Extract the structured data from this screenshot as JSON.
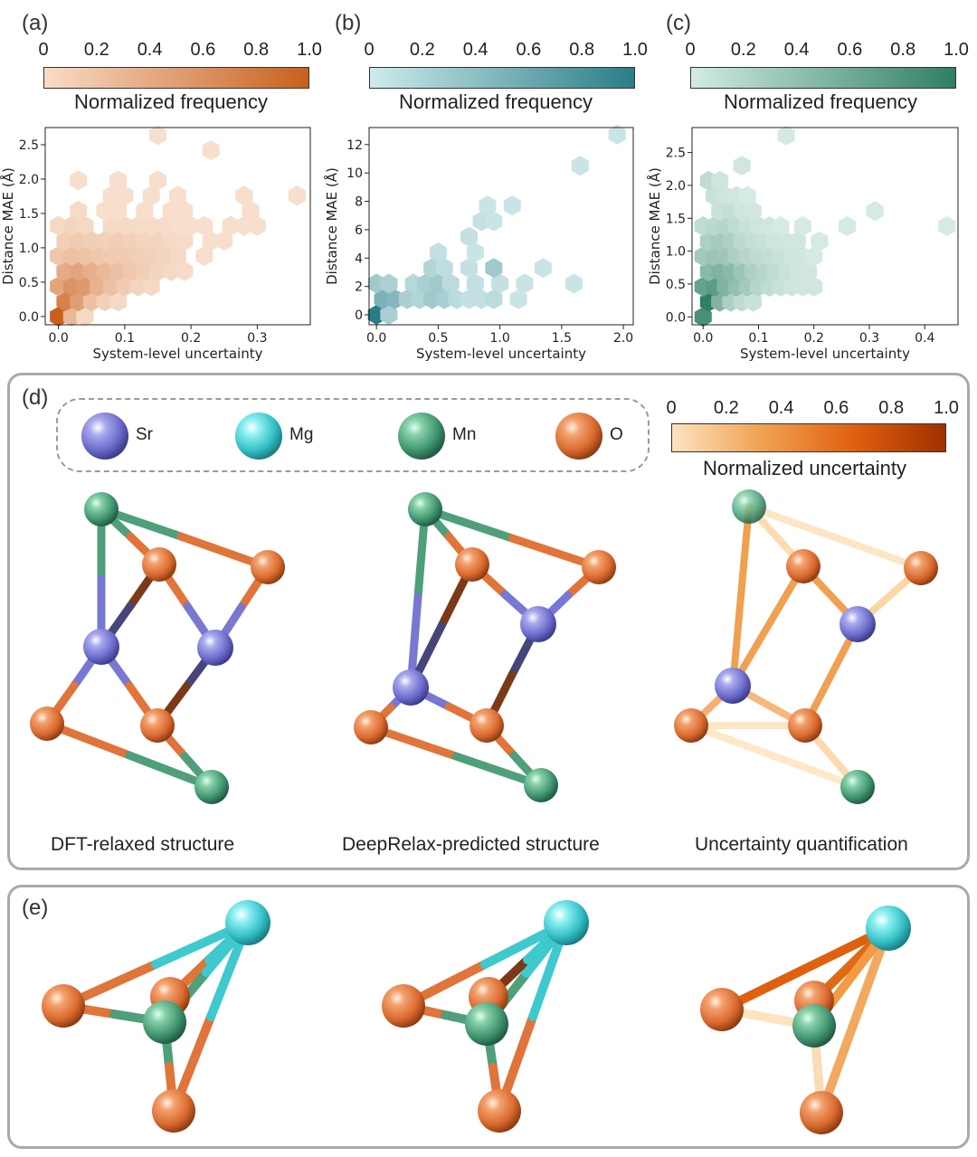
{
  "panels_top": [
    {
      "label": "(a)",
      "colorbar_ticks": [
        "0",
        "0.2",
        "0.4",
        "0.6",
        "0.8",
        "1.0"
      ],
      "colorbar_title": "Normalized frequency",
      "colors": [
        "#f8dcc6",
        "#c8601c"
      ]
    },
    {
      "label": "(b)",
      "colorbar_ticks": [
        "0",
        "0.2",
        "0.4",
        "0.6",
        "0.8",
        "1.0"
      ],
      "colorbar_title": "Normalized frequency",
      "colors": [
        "#cdebec",
        "#2a7d86"
      ]
    },
    {
      "label": "(c)",
      "colorbar_ticks": [
        "0",
        "0.2",
        "0.4",
        "0.6",
        "0.8",
        "1.0"
      ],
      "colorbar_title": "Normalized frequency",
      "colors": [
        "#d2ece2",
        "#2f7f62"
      ]
    }
  ],
  "chart_data": [
    {
      "type": "heatmap",
      "subtype": "hexbin",
      "xlabel": "System-level uncertainty",
      "ylabel": "Distance MAE (Å)",
      "xlim": [
        -0.02,
        0.38
      ],
      "ylim": [
        -0.12,
        2.75
      ],
      "xticks": [
        0.0,
        0.1,
        0.2,
        0.3
      ],
      "xtick_labels": [
        "0.0",
        "0.1",
        "0.2",
        "0.3"
      ],
      "yticks": [
        0.0,
        0.5,
        1.0,
        1.5,
        2.0,
        2.5
      ],
      "ytick_labels": [
        "0.0",
        "0.5",
        "1.0",
        "1.5",
        "2.0",
        "2.5"
      ],
      "cmap": [
        "#fbe9dc",
        "#c8601c"
      ],
      "bins": [
        [
          0.0,
          0.0,
          1.0
        ],
        [
          0.02,
          0.0,
          0.35
        ],
        [
          0.04,
          0.0,
          0.12
        ],
        [
          0.01,
          0.22,
          0.75
        ],
        [
          0.03,
          0.22,
          0.55
        ],
        [
          0.05,
          0.22,
          0.3
        ],
        [
          0.07,
          0.22,
          0.18
        ],
        [
          0.09,
          0.22,
          0.12
        ],
        [
          0.0,
          0.44,
          0.5
        ],
        [
          0.02,
          0.44,
          0.62
        ],
        [
          0.04,
          0.44,
          0.58
        ],
        [
          0.06,
          0.44,
          0.4
        ],
        [
          0.08,
          0.44,
          0.3
        ],
        [
          0.1,
          0.44,
          0.22
        ],
        [
          0.12,
          0.44,
          0.15
        ],
        [
          0.14,
          0.44,
          0.12
        ],
        [
          0.01,
          0.66,
          0.45
        ],
        [
          0.03,
          0.66,
          0.5
        ],
        [
          0.05,
          0.66,
          0.42
        ],
        [
          0.07,
          0.66,
          0.35
        ],
        [
          0.09,
          0.66,
          0.3
        ],
        [
          0.11,
          0.66,
          0.25
        ],
        [
          0.13,
          0.66,
          0.2
        ],
        [
          0.15,
          0.66,
          0.15
        ],
        [
          0.17,
          0.66,
          0.12
        ],
        [
          0.19,
          0.66,
          0.1
        ],
        [
          0.0,
          0.88,
          0.25
        ],
        [
          0.02,
          0.88,
          0.3
        ],
        [
          0.04,
          0.88,
          0.28
        ],
        [
          0.06,
          0.88,
          0.25
        ],
        [
          0.08,
          0.88,
          0.22
        ],
        [
          0.1,
          0.88,
          0.22
        ],
        [
          0.12,
          0.88,
          0.2
        ],
        [
          0.14,
          0.88,
          0.18
        ],
        [
          0.16,
          0.88,
          0.15
        ],
        [
          0.18,
          0.88,
          0.12
        ],
        [
          0.22,
          0.88,
          0.08
        ],
        [
          0.01,
          1.1,
          0.2
        ],
        [
          0.03,
          1.1,
          0.22
        ],
        [
          0.05,
          1.1,
          0.2
        ],
        [
          0.07,
          1.1,
          0.18
        ],
        [
          0.09,
          1.1,
          0.2
        ],
        [
          0.11,
          1.1,
          0.18
        ],
        [
          0.13,
          1.1,
          0.15
        ],
        [
          0.15,
          1.1,
          0.15
        ],
        [
          0.17,
          1.1,
          0.12
        ],
        [
          0.19,
          1.1,
          0.1
        ],
        [
          0.23,
          1.1,
          0.08
        ],
        [
          0.25,
          1.1,
          0.08
        ],
        [
          0.0,
          1.32,
          0.12
        ],
        [
          0.02,
          1.32,
          0.15
        ],
        [
          0.04,
          1.32,
          0.12
        ],
        [
          0.08,
          1.32,
          0.12
        ],
        [
          0.1,
          1.32,
          0.12
        ],
        [
          0.12,
          1.32,
          0.1
        ],
        [
          0.14,
          1.32,
          0.1
        ],
        [
          0.16,
          1.32,
          0.1
        ],
        [
          0.18,
          1.32,
          0.08
        ],
        [
          0.2,
          1.32,
          0.08
        ],
        [
          0.22,
          1.32,
          0.08
        ],
        [
          0.26,
          1.32,
          0.08
        ],
        [
          0.28,
          1.32,
          0.08
        ],
        [
          0.3,
          1.32,
          0.08
        ],
        [
          0.03,
          1.54,
          0.1
        ],
        [
          0.07,
          1.54,
          0.08
        ],
        [
          0.09,
          1.54,
          0.08
        ],
        [
          0.13,
          1.54,
          0.08
        ],
        [
          0.17,
          1.54,
          0.08
        ],
        [
          0.19,
          1.54,
          0.08
        ],
        [
          0.29,
          1.54,
          0.08
        ],
        [
          0.08,
          1.76,
          0.08
        ],
        [
          0.1,
          1.76,
          0.08
        ],
        [
          0.14,
          1.76,
          0.08
        ],
        [
          0.18,
          1.76,
          0.08
        ],
        [
          0.28,
          1.76,
          0.08
        ],
        [
          0.36,
          1.76,
          0.08
        ],
        [
          0.03,
          1.98,
          0.08
        ],
        [
          0.09,
          1.98,
          0.08
        ],
        [
          0.15,
          1.98,
          0.08
        ],
        [
          0.23,
          2.42,
          0.08
        ],
        [
          0.15,
          2.64,
          0.08
        ]
      ]
    },
    {
      "type": "heatmap",
      "subtype": "hexbin",
      "xlabel": "System-level uncertainty",
      "ylabel": "Distance MAE (Å)",
      "xlim": [
        -0.06,
        2.08
      ],
      "ylim": [
        -0.7,
        13.2
      ],
      "xticks": [
        0.0,
        0.5,
        1.0,
        1.5,
        2.0
      ],
      "xtick_labels": [
        "0.0",
        "0.5",
        "1.0",
        "1.5",
        "2.0"
      ],
      "yticks": [
        0,
        2,
        4,
        6,
        8,
        10,
        12
      ],
      "ytick_labels": [
        "0",
        "2",
        "4",
        "6",
        "8",
        "10",
        "12"
      ],
      "cmap": [
        "#dff2f2",
        "#2a7d86"
      ],
      "bins": [
        [
          0.0,
          0.0,
          1.0
        ],
        [
          0.1,
          0.0,
          0.3
        ],
        [
          0.05,
          1.1,
          0.55
        ],
        [
          0.15,
          1.1,
          0.5
        ],
        [
          0.25,
          1.1,
          0.3
        ],
        [
          0.35,
          1.1,
          0.25
        ],
        [
          0.45,
          1.1,
          0.35
        ],
        [
          0.55,
          1.1,
          0.3
        ],
        [
          0.65,
          1.1,
          0.2
        ],
        [
          0.75,
          1.1,
          0.15
        ],
        [
          0.85,
          1.1,
          0.15
        ],
        [
          0.95,
          1.1,
          0.2
        ],
        [
          1.15,
          1.1,
          0.12
        ],
        [
          0.0,
          2.2,
          0.35
        ],
        [
          0.1,
          2.2,
          0.28
        ],
        [
          0.3,
          2.2,
          0.22
        ],
        [
          0.4,
          2.2,
          0.3
        ],
        [
          0.5,
          2.2,
          0.35
        ],
        [
          0.6,
          2.2,
          0.2
        ],
        [
          0.8,
          2.2,
          0.15
        ],
        [
          1.0,
          2.2,
          0.15
        ],
        [
          1.2,
          2.2,
          0.12
        ],
        [
          1.6,
          2.2,
          0.12
        ],
        [
          0.45,
          3.3,
          0.25
        ],
        [
          0.55,
          3.3,
          0.18
        ],
        [
          0.75,
          3.3,
          0.15
        ],
        [
          0.95,
          3.3,
          0.35
        ],
        [
          1.35,
          3.3,
          0.12
        ],
        [
          0.5,
          4.4,
          0.15
        ],
        [
          0.8,
          4.4,
          0.12
        ],
        [
          0.75,
          5.5,
          0.15
        ],
        [
          0.85,
          6.6,
          0.15
        ],
        [
          0.95,
          6.6,
          0.12
        ],
        [
          0.9,
          7.7,
          0.12
        ],
        [
          1.1,
          7.7,
          0.12
        ],
        [
          1.65,
          10.5,
          0.12
        ],
        [
          1.95,
          12.7,
          0.12
        ]
      ]
    },
    {
      "type": "heatmap",
      "subtype": "hexbin",
      "xlabel": "System-level uncertainty",
      "ylabel": "Distance MAE (Å)",
      "xlim": [
        -0.02,
        0.46
      ],
      "ylim": [
        -0.12,
        2.88
      ],
      "xticks": [
        0.0,
        0.1,
        0.2,
        0.3,
        0.4
      ],
      "xtick_labels": [
        "0.0",
        "0.1",
        "0.2",
        "0.3",
        "0.4"
      ],
      "yticks": [
        0.0,
        0.5,
        1.0,
        1.5,
        2.0,
        2.5
      ],
      "ytick_labels": [
        "0.0",
        "0.5",
        "1.0",
        "1.5",
        "2.0",
        "2.5"
      ],
      "cmap": [
        "#e3f3ec",
        "#2f7f62"
      ],
      "bins": [
        [
          0.0,
          0.0,
          0.85
        ],
        [
          0.01,
          0.23,
          1.0
        ],
        [
          0.03,
          0.23,
          0.55
        ],
        [
          0.05,
          0.23,
          0.3
        ],
        [
          0.07,
          0.23,
          0.2
        ],
        [
          0.09,
          0.23,
          0.15
        ],
        [
          0.0,
          0.46,
          0.7
        ],
        [
          0.02,
          0.46,
          0.75
        ],
        [
          0.04,
          0.46,
          0.55
        ],
        [
          0.06,
          0.46,
          0.45
        ],
        [
          0.08,
          0.46,
          0.35
        ],
        [
          0.1,
          0.46,
          0.25
        ],
        [
          0.12,
          0.46,
          0.2
        ],
        [
          0.14,
          0.46,
          0.15
        ],
        [
          0.16,
          0.46,
          0.12
        ],
        [
          0.18,
          0.46,
          0.1
        ],
        [
          0.2,
          0.46,
          0.1
        ],
        [
          0.01,
          0.69,
          0.5
        ],
        [
          0.03,
          0.69,
          0.55
        ],
        [
          0.05,
          0.69,
          0.5
        ],
        [
          0.07,
          0.69,
          0.4
        ],
        [
          0.09,
          0.69,
          0.3
        ],
        [
          0.11,
          0.69,
          0.25
        ],
        [
          0.13,
          0.69,
          0.2
        ],
        [
          0.15,
          0.69,
          0.15
        ],
        [
          0.17,
          0.69,
          0.12
        ],
        [
          0.19,
          0.69,
          0.1
        ],
        [
          0.0,
          0.92,
          0.35
        ],
        [
          0.02,
          0.92,
          0.4
        ],
        [
          0.04,
          0.92,
          0.38
        ],
        [
          0.06,
          0.92,
          0.3
        ],
        [
          0.08,
          0.92,
          0.25
        ],
        [
          0.1,
          0.92,
          0.2
        ],
        [
          0.12,
          0.92,
          0.18
        ],
        [
          0.14,
          0.92,
          0.15
        ],
        [
          0.16,
          0.92,
          0.12
        ],
        [
          0.18,
          0.92,
          0.1
        ],
        [
          0.2,
          0.92,
          0.08
        ],
        [
          0.01,
          1.15,
          0.3
        ],
        [
          0.03,
          1.15,
          0.35
        ],
        [
          0.05,
          1.15,
          0.3
        ],
        [
          0.07,
          1.15,
          0.22
        ],
        [
          0.09,
          1.15,
          0.18
        ],
        [
          0.11,
          1.15,
          0.15
        ],
        [
          0.13,
          1.15,
          0.12
        ],
        [
          0.15,
          1.15,
          0.1
        ],
        [
          0.17,
          1.15,
          0.1
        ],
        [
          0.21,
          1.15,
          0.08
        ],
        [
          0.0,
          1.38,
          0.2
        ],
        [
          0.02,
          1.38,
          0.22
        ],
        [
          0.04,
          1.38,
          0.25
        ],
        [
          0.06,
          1.38,
          0.2
        ],
        [
          0.08,
          1.38,
          0.15
        ],
        [
          0.1,
          1.38,
          0.12
        ],
        [
          0.12,
          1.38,
          0.1
        ],
        [
          0.14,
          1.38,
          0.08
        ],
        [
          0.18,
          1.38,
          0.08
        ],
        [
          0.26,
          1.38,
          0.08
        ],
        [
          0.44,
          1.38,
          0.08
        ],
        [
          0.03,
          1.61,
          0.15
        ],
        [
          0.05,
          1.61,
          0.18
        ],
        [
          0.07,
          1.61,
          0.12
        ],
        [
          0.09,
          1.61,
          0.1
        ],
        [
          0.31,
          1.61,
          0.08
        ],
        [
          0.02,
          1.84,
          0.15
        ],
        [
          0.04,
          1.84,
          0.12
        ],
        [
          0.06,
          1.84,
          0.1
        ],
        [
          0.08,
          1.84,
          0.08
        ],
        [
          0.01,
          2.07,
          0.2
        ],
        [
          0.03,
          2.07,
          0.12
        ],
        [
          0.07,
          2.3,
          0.1
        ],
        [
          0.15,
          2.76,
          0.08
        ]
      ]
    }
  ],
  "panel_d": {
    "label": "(d)",
    "legend": [
      {
        "symbol": "Sr",
        "color": "#7878d2"
      },
      {
        "symbol": "Mg",
        "color": "#3ec9cf"
      },
      {
        "symbol": "Mn",
        "color": "#4e9f7a"
      },
      {
        "symbol": "O",
        "color": "#e0743a"
      }
    ],
    "uncertainty_colorbar": {
      "ticks": [
        "0",
        "0.2",
        "0.4",
        "0.6",
        "0.8",
        "1.0"
      ],
      "title": "Normalized uncertainty",
      "colors": [
        "#fde3c0",
        "#f0a050",
        "#e06010",
        "#a03000"
      ]
    },
    "captions": [
      "DFT-relaxed structure",
      "DeepRelax-predicted structure",
      "Uncertainty quantification"
    ]
  },
  "panel_e": {
    "label": "(e)"
  },
  "atom_colors": {
    "Sr": "#7878d2",
    "Mg": "#3ec9cf",
    "Mn": "#4e9f7a",
    "O": "#e0743a"
  }
}
